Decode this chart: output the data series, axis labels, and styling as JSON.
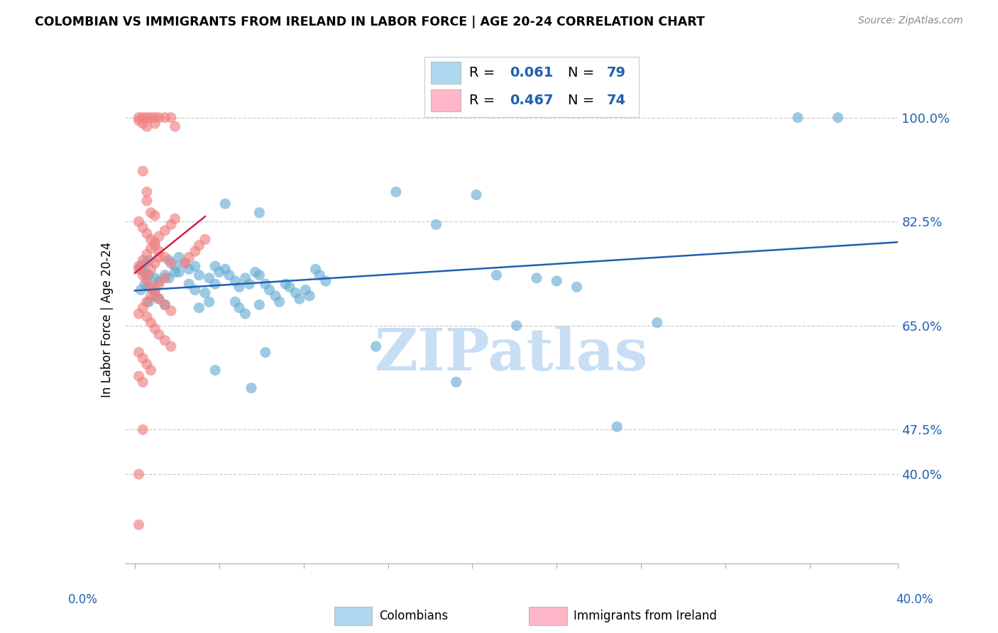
{
  "title": "COLOMBIAN VS IMMIGRANTS FROM IRELAND IN LABOR FORCE | AGE 20-24 CORRELATION CHART",
  "source": "Source: ZipAtlas.com",
  "ylabel": "In Labor Force | Age 20-24",
  "ytick_vals": [
    40.0,
    47.5,
    65.0,
    82.5,
    100.0
  ],
  "ytick_labels": [
    "40.0%",
    "47.5%",
    "65.0%",
    "82.5%",
    "100.0%"
  ],
  "xtick_labels": [
    "0.0%",
    "40.0%"
  ],
  "colombians_R": "0.061",
  "colombians_N": "79",
  "ireland_R": "0.467",
  "ireland_N": "74",
  "blue_color": "#6AAED6",
  "pink_color": "#F08080",
  "legend_blue_color": "#ADD8F0",
  "legend_pink_color": "#FFB6C8",
  "trend_blue": "#2060B0",
  "trend_pink": "#D0204A",
  "watermark_color": "#C8DEF5",
  "blue_scatter_x": [
    0.3,
    0.5,
    0.7,
    0.3,
    0.5,
    0.7,
    1.0,
    1.2,
    0.5,
    0.7,
    0.3,
    1.0,
    1.2,
    0.7,
    1.5,
    1.7,
    2.0,
    2.2,
    1.5,
    1.7,
    2.5,
    2.7,
    2.2,
    3.0,
    2.0,
    3.2,
    2.7,
    3.0,
    3.5,
    3.7,
    3.2,
    4.0,
    4.2,
    3.7,
    4.0,
    4.5,
    4.7,
    5.0,
    5.2,
    5.5,
    5.7,
    6.0,
    6.2,
    5.0,
    5.2,
    5.5,
    6.2,
    6.5,
    6.7,
    7.0,
    7.2,
    7.5,
    7.7,
    8.0,
    8.2,
    8.5,
    8.7,
    9.0,
    9.2,
    9.5,
    6.2,
    4.5,
    6.5,
    13.0,
    15.0,
    17.0,
    18.0,
    19.0,
    20.0,
    21.0,
    22.0,
    12.0,
    16.0,
    26.0,
    24.0,
    33.0,
    35.0,
    4.0,
    5.8
  ],
  "blue_scatter_y": [
    75.0,
    75.5,
    76.0,
    74.5,
    74.0,
    73.5,
    73.0,
    72.5,
    72.0,
    71.5,
    71.0,
    70.0,
    69.5,
    69.0,
    68.5,
    76.0,
    75.0,
    74.0,
    73.5,
    73.0,
    75.5,
    74.5,
    76.5,
    75.0,
    74.0,
    73.5,
    72.0,
    71.0,
    70.5,
    69.0,
    68.0,
    75.0,
    74.0,
    73.0,
    72.0,
    74.5,
    73.5,
    72.5,
    71.5,
    73.0,
    72.0,
    74.0,
    73.5,
    69.0,
    68.0,
    67.0,
    68.5,
    72.0,
    71.0,
    70.0,
    69.0,
    72.0,
    71.5,
    70.5,
    69.5,
    71.0,
    70.0,
    74.5,
    73.5,
    72.5,
    84.0,
    85.5,
    60.5,
    87.5,
    82.0,
    87.0,
    73.5,
    65.0,
    73.0,
    72.5,
    71.5,
    61.5,
    55.5,
    65.5,
    48.0,
    100.0,
    100.0,
    57.5,
    54.5
  ],
  "pink_scatter_x": [
    0.2,
    0.4,
    0.6,
    0.8,
    1.0,
    0.2,
    0.4,
    0.6,
    1.2,
    1.5,
    1.8,
    1.0,
    2.0,
    0.4,
    0.6,
    0.6,
    0.8,
    1.0,
    0.2,
    0.4,
    0.6,
    0.8,
    1.0,
    1.2,
    1.5,
    1.8,
    0.2,
    0.4,
    0.6,
    0.8,
    1.0,
    1.2,
    1.5,
    1.8,
    0.6,
    0.8,
    1.0,
    1.2,
    1.5,
    1.8,
    0.2,
    0.4,
    0.6,
    0.8,
    0.2,
    0.4,
    0.2,
    0.4,
    0.6,
    0.8,
    1.0,
    1.2,
    1.5,
    1.8,
    2.0,
    2.5,
    2.7,
    3.0,
    3.2,
    3.5,
    0.6,
    0.8,
    1.0,
    1.2,
    0.2,
    0.2,
    0.4,
    1.5,
    1.2,
    1.0,
    0.8,
    0.6,
    0.4,
    0.2
  ],
  "pink_scatter_y": [
    100.0,
    100.0,
    100.0,
    100.0,
    100.0,
    99.5,
    99.0,
    98.5,
    100.0,
    100.0,
    100.0,
    99.0,
    98.5,
    91.0,
    87.5,
    86.0,
    84.0,
    83.5,
    82.5,
    81.5,
    80.5,
    79.5,
    78.5,
    77.5,
    76.5,
    75.5,
    74.5,
    73.5,
    72.5,
    71.5,
    70.5,
    69.5,
    68.5,
    67.5,
    66.5,
    65.5,
    64.5,
    63.5,
    62.5,
    61.5,
    60.5,
    59.5,
    58.5,
    57.5,
    56.5,
    55.5,
    75.0,
    76.0,
    77.0,
    78.0,
    79.0,
    80.0,
    81.0,
    82.0,
    83.0,
    75.5,
    76.5,
    77.5,
    78.5,
    79.5,
    73.5,
    74.5,
    75.5,
    76.5,
    40.0,
    31.5,
    47.5,
    73.0,
    72.0,
    71.0,
    70.0,
    69.0,
    68.0,
    67.0
  ]
}
